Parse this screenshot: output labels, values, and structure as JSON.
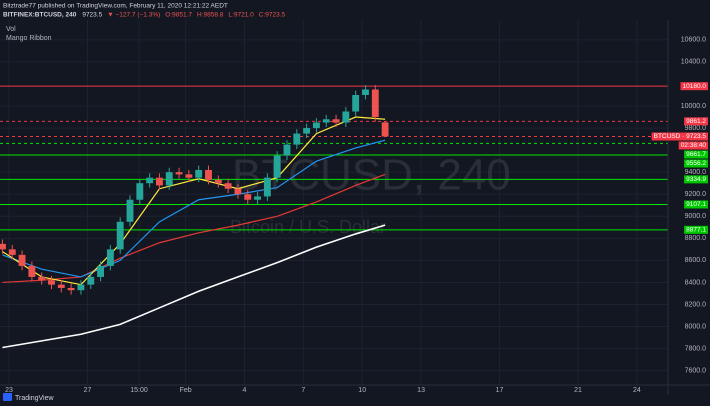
{
  "chart_data": {
    "type": "candlestick",
    "header": "Bitztrade77 published on TradingView.com, February 11, 2020 12:21:22 AEDT",
    "symbol": "BITFINEX:BTCUSD, 240",
    "last": "9723.5",
    "change": "▼ −127.7 (−1.3%)",
    "ohlc_labels": [
      "O:9851.7",
      "H:9858.8",
      "L:9721.0",
      "C:9723.5"
    ],
    "indicators": [
      "Vol",
      "Mango Ribbon"
    ],
    "watermark": "BTCUSD, 240",
    "watermark_sub": "Bitcoin / U.S. Dollar",
    "brand": "TradingView",
    "countdown": "02:38:40",
    "up_color": "#26a69a",
    "down_color": "#ef5350",
    "x": [
      -2,
      1,
      4,
      7,
      10,
      13,
      16,
      19,
      22,
      25,
      28,
      31,
      34,
      37,
      40,
      43,
      46,
      49,
      52,
      55,
      58,
      61,
      64,
      67,
      70,
      73,
      76,
      79,
      82,
      85,
      88,
      91,
      94,
      97,
      100,
      103,
      106,
      109,
      112,
      115
    ],
    "open": [
      8750,
      8700,
      8650,
      8550,
      8450,
      8420,
      8380,
      8350,
      8330,
      8380,
      8450,
      8550,
      8700,
      8950,
      9150,
      9300,
      9350,
      9280,
      9400,
      9380,
      9350,
      9420,
      9330,
      9300,
      9250,
      9200,
      9150,
      9180,
      9350,
      9550,
      9650,
      9750,
      9800,
      9850,
      9880,
      9850,
      9950,
      10100,
      10150,
      9851.7
    ],
    "high": [
      8790,
      8740,
      8690,
      8590,
      8490,
      8460,
      8420,
      8390,
      8420,
      8490,
      8590,
      8740,
      8990,
      9190,
      9340,
      9390,
      9390,
      9440,
      9440,
      9420,
      9460,
      9460,
      9370,
      9340,
      9290,
      9240,
      9220,
      9390,
      9590,
      9690,
      9790,
      9840,
      9890,
      9920,
      9920,
      9990,
      10140,
      10190,
      10190,
      9858.8
    ],
    "low": [
      8660,
      8610,
      8510,
      8410,
      8380,
      8340,
      8310,
      8290,
      8290,
      8340,
      8410,
      8510,
      8660,
      8910,
      9110,
      9260,
      9240,
      9240,
      9340,
      9310,
      9310,
      9290,
      9260,
      9210,
      9160,
      9110,
      9110,
      9140,
      9310,
      9510,
      9610,
      9710,
      9760,
      9810,
      9810,
      9810,
      9910,
      10060,
      9860,
      9721.0
    ],
    "close": [
      8700,
      8650,
      8550,
      8450,
      8420,
      8380,
      8350,
      8330,
      8380,
      8450,
      8550,
      8700,
      8950,
      9150,
      9300,
      9350,
      9280,
      9400,
      9380,
      9350,
      9420,
      9330,
      9300,
      9250,
      9200,
      9150,
      9180,
      9350,
      9550,
      9650,
      9750,
      9800,
      9850,
      9880,
      9850,
      9950,
      10100,
      10150,
      9900,
      9723.5
    ],
    "lines": [
      {
        "color": "#ffffff",
        "x": [
          -2,
          10,
          22,
          34,
          46,
          58,
          70,
          82,
          94,
          106,
          115
        ],
        "values": [
          7810,
          7870,
          7930,
          8020,
          8170,
          8320,
          8450,
          8580,
          8720,
          8840,
          8920
        ]
      },
      {
        "color": "#e53935",
        "x": [
          -2,
          10,
          22,
          34,
          46,
          58,
          70,
          82,
          94,
          106,
          115
        ],
        "values": [
          8400,
          8420,
          8450,
          8620,
          8760,
          8850,
          8920,
          9000,
          9130,
          9280,
          9380
        ]
      },
      {
        "color": "#2196f3",
        "x": [
          -2,
          10,
          22,
          34,
          46,
          58,
          70,
          82,
          94,
          106,
          115
        ],
        "values": [
          8650,
          8520,
          8450,
          8600,
          8950,
          9150,
          9200,
          9260,
          9500,
          9620,
          9690
        ]
      },
      {
        "color": "#ffeb3b",
        "x": [
          -2,
          10,
          22,
          34,
          46,
          58,
          70,
          82,
          94,
          106,
          115
        ],
        "values": [
          8680,
          8450,
          8380,
          8750,
          9250,
          9340,
          9250,
          9350,
          9750,
          9900,
          9880
        ]
      }
    ],
    "levels": [
      {
        "value": 10180,
        "label": "10180.0",
        "color": "#f23645",
        "dashed": false
      },
      {
        "value": 9861.2,
        "label": "9861.2",
        "color": "#f23645",
        "dashed": true
      },
      {
        "value": 9723.5,
        "label": "BTCUSD · 9723.5",
        "color": "#f23645",
        "dashed": true
      },
      {
        "value": 9661.7,
        "label": "9661.7",
        "color": "#00e600",
        "dashed": true
      },
      {
        "value": 9556.2,
        "label": "9556.2",
        "color": "#00e600",
        "dashed": false
      },
      {
        "value": 9334.9,
        "label": "9334.9",
        "color": "#00e600",
        "dashed": false
      },
      {
        "value": 9107.1,
        "label": "9107.1",
        "color": "#00e600",
        "dashed": false
      },
      {
        "value": 8877.1,
        "label": "8877.1",
        "color": "#00e600",
        "dashed": false
      }
    ],
    "xlim": [
      -2.75,
      201.5
    ],
    "xticks": [
      {
        "value": 0,
        "label": "23"
      },
      {
        "value": 24,
        "label": "27"
      },
      {
        "value": 39.75,
        "label": "15:00"
      },
      {
        "value": 54,
        "label": "Feb"
      },
      {
        "value": 72,
        "label": "4"
      },
      {
        "value": 90,
        "label": "7"
      },
      {
        "value": 108,
        "label": "10"
      },
      {
        "value": 126,
        "label": "13"
      },
      {
        "value": 150,
        "label": "17"
      },
      {
        "value": 174,
        "label": "21"
      },
      {
        "value": 192,
        "label": "24"
      }
    ],
    "ylim": [
      7470,
      10780
    ],
    "yticks": [
      {
        "value": 10600,
        "label": "10600.0"
      },
      {
        "value": 10400,
        "label": "10400.0"
      },
      {
        "value": 10000,
        "label": "10000.0"
      },
      {
        "value": 9800,
        "label": "9800.0"
      },
      {
        "value": 9400,
        "label": "9400.0"
      },
      {
        "value": 9200,
        "label": "9200.0"
      },
      {
        "value": 9000,
        "label": "9000.0"
      },
      {
        "value": 8800,
        "label": "8800.0"
      },
      {
        "value": 8600,
        "label": "8600.0"
      },
      {
        "value": 8400,
        "label": "8400.0"
      },
      {
        "value": 8200,
        "label": "8200.0"
      },
      {
        "value": 8000,
        "label": "8000.0"
      },
      {
        "value": 7800,
        "label": "7800.0"
      },
      {
        "value": 7600,
        "label": "7600.0"
      }
    ],
    "grid": true
  }
}
